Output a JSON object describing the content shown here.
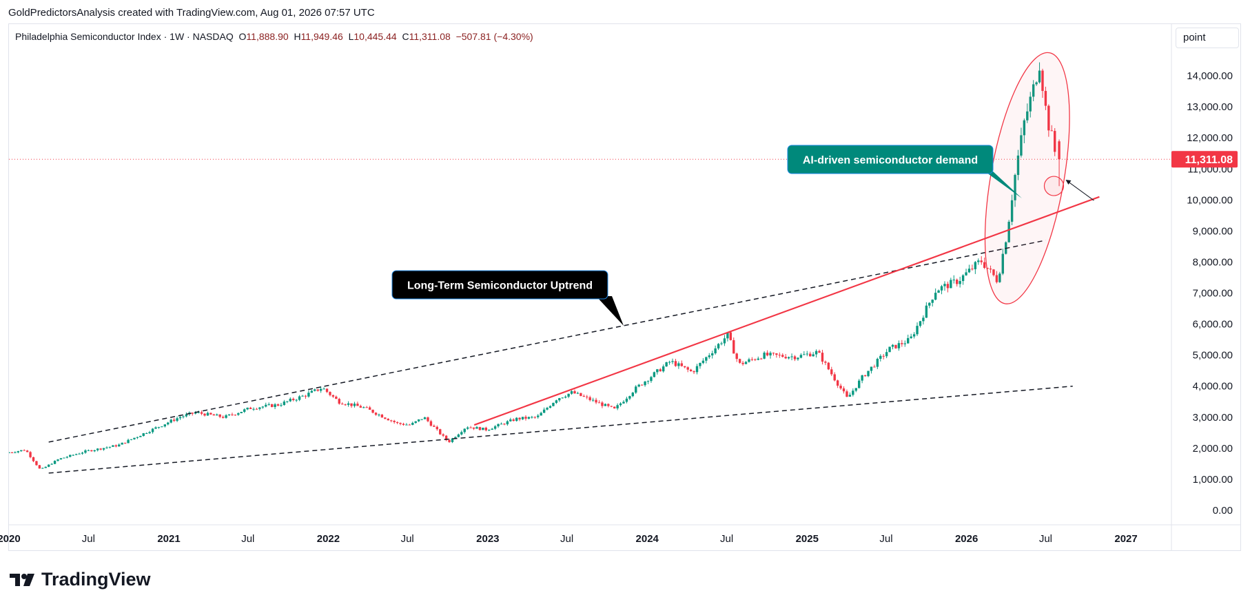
{
  "header": {
    "note": "GoldPredictorsAnalysis created with TradingView.com, Aug 01, 2026 07:57 UTC"
  },
  "legend": {
    "symbol": "Philadelphia Semiconductor Index",
    "sep1": "·",
    "interval": "1W",
    "sep2": "·",
    "exchange": "NASDAQ",
    "o_label": "O",
    "o_value": "11,888.90",
    "h_label": "H",
    "h_value": "11,949.46",
    "l_label": "L",
    "l_value": "10,445.44",
    "c_label": "C",
    "c_value": "11,311.08",
    "change": "−507.81 (−4.30%)"
  },
  "scale_button": "point",
  "logo_text": "TradingView",
  "colors": {
    "up": "#089981",
    "down": "#f23645",
    "trend_red": "#f23645",
    "price_tag": "#f23645",
    "callout_teal": "#00897b",
    "callout_black": "#000000",
    "dashed": "#131722",
    "grid_text": "#131722"
  },
  "chart_data": {
    "type": "candlestick",
    "title": "Philadelphia Semiconductor Index",
    "interval": "1W",
    "exchange": "NASDAQ",
    "last_price": 11311.08,
    "last_price_label": "11,311.08",
    "ylim": [
      -200,
      15000
    ],
    "y_ticks": [
      0,
      1000,
      2000,
      3000,
      4000,
      5000,
      6000,
      7000,
      8000,
      9000,
      10000,
      11000,
      12000,
      13000,
      14000
    ],
    "y_tick_labels": [
      "0.00",
      "1,000.00",
      "2,000.00",
      "3,000.00",
      "4,000.00",
      "5,000.00",
      "6,000.00",
      "7,000.00",
      "8,000.00",
      "9,000.00",
      "10,000.00",
      "11,000.00",
      "12,000.00",
      "13,000.00",
      "14,000.00"
    ],
    "x_range": [
      "2020-01-01",
      "2027-04-15"
    ],
    "x_ticks": [
      {
        "date": "2020-01-01",
        "label": "2020",
        "bold": true
      },
      {
        "date": "2020-07-01",
        "label": "Jul",
        "bold": false
      },
      {
        "date": "2021-01-01",
        "label": "2021",
        "bold": true
      },
      {
        "date": "2021-07-01",
        "label": "Jul",
        "bold": false
      },
      {
        "date": "2022-01-01",
        "label": "2022",
        "bold": true
      },
      {
        "date": "2022-07-01",
        "label": "Jul",
        "bold": false
      },
      {
        "date": "2023-01-01",
        "label": "2023",
        "bold": true
      },
      {
        "date": "2023-07-01",
        "label": "Jul",
        "bold": false
      },
      {
        "date": "2024-01-01",
        "label": "2024",
        "bold": true
      },
      {
        "date": "2024-07-01",
        "label": "Jul",
        "bold": false
      },
      {
        "date": "2025-01-01",
        "label": "2025",
        "bold": true
      },
      {
        "date": "2025-07-01",
        "label": "Jul",
        "bold": false
      },
      {
        "date": "2026-01-01",
        "label": "2026",
        "bold": true
      },
      {
        "date": "2026-07-01",
        "label": "Jul",
        "bold": false
      },
      {
        "date": "2027-01-01",
        "label": "2027",
        "bold": true
      }
    ],
    "price_path": [
      [
        "2020-01-01",
        1850
      ],
      [
        "2020-02-15",
        1950
      ],
      [
        "2020-03-20",
        1300
      ],
      [
        "2020-05-01",
        1650
      ],
      [
        "2020-07-01",
        1900
      ],
      [
        "2020-09-15",
        2100
      ],
      [
        "2020-11-15",
        2500
      ],
      [
        "2021-02-01",
        3000
      ],
      [
        "2021-03-10",
        3150
      ],
      [
        "2021-05-15",
        3000
      ],
      [
        "2021-07-15",
        3300
      ],
      [
        "2021-09-15",
        3400
      ],
      [
        "2021-11-15",
        3700
      ],
      [
        "2021-12-25",
        3950
      ],
      [
        "2022-02-01",
        3500
      ],
      [
        "2022-04-01",
        3300
      ],
      [
        "2022-06-15",
        2800
      ],
      [
        "2022-07-15",
        2750
      ],
      [
        "2022-08-15",
        3000
      ],
      [
        "2022-10-10",
        2200
      ],
      [
        "2022-11-20",
        2700
      ],
      [
        "2023-01-05",
        2600
      ],
      [
        "2023-03-15",
        2950
      ],
      [
        "2023-05-01",
        3000
      ],
      [
        "2023-06-15",
        3600
      ],
      [
        "2023-07-20",
        3800
      ],
      [
        "2023-10-25",
        3250
      ],
      [
        "2023-12-10",
        3900
      ],
      [
        "2024-03-01",
        4800
      ],
      [
        "2024-04-20",
        4450
      ],
      [
        "2024-07-10",
        5650
      ],
      [
        "2024-08-05",
        4700
      ],
      [
        "2024-10-01",
        5000
      ],
      [
        "2024-12-15",
        4950
      ],
      [
        "2025-02-01",
        5100
      ],
      [
        "2025-04-10",
        3600
      ],
      [
        "2025-05-15",
        4300
      ],
      [
        "2025-07-15",
        5200
      ],
      [
        "2025-09-01",
        5500
      ],
      [
        "2025-10-30",
        7100
      ],
      [
        "2025-12-20",
        7400
      ],
      [
        "2026-02-10",
        8050
      ],
      [
        "2026-03-20",
        7400
      ],
      [
        "2026-04-10",
        8900
      ],
      [
        "2026-05-01",
        11000
      ],
      [
        "2026-05-20",
        12500
      ],
      [
        "2026-06-10",
        13600
      ],
      [
        "2026-06-25",
        14450
      ],
      [
        "2026-07-05",
        13200
      ],
      [
        "2026-07-15",
        12400
      ],
      [
        "2026-07-25",
        11889
      ],
      [
        "2026-08-01",
        11311
      ]
    ],
    "last_candle": {
      "date": "2026-08-01",
      "open": 11888.9,
      "high": 11949.46,
      "low": 10445.44,
      "close": 11311.08
    },
    "trend_lines": [
      {
        "name": "upper-channel",
        "style": "dashed",
        "color": "#131722",
        "from": [
          "2020-04-01",
          2200
        ],
        "to": [
          "2026-07-01",
          8700
        ]
      },
      {
        "name": "lower-channel",
        "style": "dashed",
        "color": "#131722",
        "from": [
          "2020-04-01",
          1200
        ],
        "to": [
          "2026-09-01",
          4000
        ]
      },
      {
        "name": "red-uptrend",
        "style": "solid",
        "color": "#f23645",
        "from": [
          "2022-12-01",
          2750
        ],
        "to": [
          "2026-11-01",
          10100
        ]
      }
    ],
    "annotations": [
      {
        "name": "long-term-uptrend-callout",
        "text": "Long-Term Semiconductor Uptrend",
        "style": "black"
      },
      {
        "name": "ai-demand-callout",
        "text": "AI-driven semiconductor demand",
        "style": "teal"
      }
    ],
    "highlight_ellipse": {
      "center": [
        "2026-05-20",
        10700
      ],
      "color": "#f23645"
    },
    "target_circle": {
      "center": [
        "2026-07-20",
        10450
      ],
      "color": "#f23645"
    },
    "grid": false,
    "legend_position": "top-left"
  }
}
